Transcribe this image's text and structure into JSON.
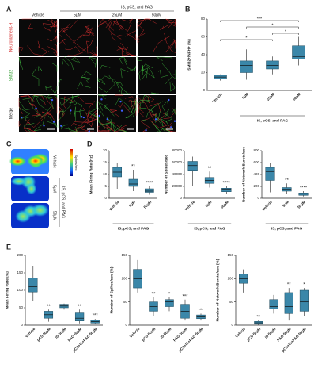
{
  "panel_labels": [
    "A",
    "B",
    "C",
    "D",
    "E"
  ],
  "panel_a": {
    "group_label": "IS, pCS, and PAG",
    "columns": [
      "Vehicle",
      "5μM",
      "25μM",
      "50μM"
    ],
    "rows": [
      "Neurofilament-H",
      "SMI32",
      "Merge"
    ]
  },
  "panel_c": {
    "group_label": "IS, pCS, and PAG",
    "rows": [
      "Vehicle",
      "5μM",
      "50μM"
    ],
    "colorbar_label": "Spikes/sec"
  },
  "chart_data": [
    {
      "type": "box",
      "ylabel": "SMI32+/NFH+ (%)",
      "categories": [
        "Vehicle",
        "5μM",
        "25μM",
        "50μM"
      ],
      "group_label": "IS, pCS, and PAG",
      "group_span": [
        "5μM",
        "50μM"
      ],
      "color": "#3b87a9",
      "ylim": [
        0,
        80
      ],
      "yticks": [
        0,
        20,
        40,
        60,
        80
      ],
      "boxes": [
        {
          "min": 11,
          "q1": 13,
          "median": 15,
          "q3": 17,
          "max": 18
        },
        {
          "min": 12,
          "q1": 20,
          "median": 28,
          "q3": 33,
          "max": 46
        },
        {
          "min": 18,
          "q1": 24,
          "median": 28,
          "q3": 33,
          "max": 38
        },
        {
          "min": 28,
          "q1": 35,
          "median": 38,
          "q3": 50,
          "max": 60
        }
      ],
      "significance": [
        null,
        null,
        null,
        null
      ],
      "comparisons": [
        {
          "from": "Vehicle",
          "to": "50μM",
          "label": "***"
        },
        {
          "from": "5μM",
          "to": "50μM",
          "label": "*"
        },
        {
          "from": "25μM",
          "to": "50μM",
          "label": "*"
        },
        {
          "from": "Vehicle",
          "to": "25μM",
          "label": "*"
        }
      ]
    },
    {
      "type": "box",
      "ylabel": "Mean Firing Rate (Hz)",
      "categories": [
        "Vehicle",
        "5μM",
        "50μM"
      ],
      "group_label": "IS, pCS, and PAG",
      "group_span": [
        "Vehicle",
        "50μM"
      ],
      "color": "#3b87a9",
      "ylim": [
        0,
        20
      ],
      "yticks": [
        0,
        5,
        10,
        15,
        20
      ],
      "boxes": [
        {
          "min": 4,
          "q1": 9,
          "median": 11,
          "q3": 13,
          "max": 15
        },
        {
          "min": 3,
          "q1": 5,
          "median": 6,
          "q3": 8,
          "max": 12
        },
        {
          "min": 1.5,
          "q1": 2.5,
          "median": 3,
          "q3": 4,
          "max": 5
        }
      ],
      "significance": [
        null,
        "**",
        "****"
      ]
    },
    {
      "type": "box",
      "ylabel": "Number of Spikes/sec",
      "categories": [
        "Vehicle",
        "5μM",
        "50μM"
      ],
      "group_label": "IS, pCS, and PAG",
      "group_span": [
        "Vehicle",
        "50μM"
      ],
      "color": "#3b87a9",
      "ylim": [
        0,
        80000
      ],
      "yticks": [
        0,
        20000,
        40000,
        60000,
        80000
      ],
      "boxes": [
        {
          "min": 20000,
          "q1": 47000,
          "median": 55000,
          "q3": 62000,
          "max": 70000
        },
        {
          "min": 18000,
          "q1": 25000,
          "median": 30000,
          "q3": 35000,
          "max": 45000
        },
        {
          "min": 8000,
          "q1": 11000,
          "median": 15000,
          "q3": 17000,
          "max": 20000
        }
      ],
      "significance": [
        null,
        "**",
        "****"
      ]
    },
    {
      "type": "box",
      "ylabel": "Number of Network Bursts/sec",
      "categories": [
        "Vehicle",
        "5μM",
        "50μM"
      ],
      "group_label": "IS, pCS, and PAG",
      "group_span": [
        "Vehicle",
        "50μM"
      ],
      "color": "#3b87a9",
      "ylim": [
        0,
        800
      ],
      "yticks": [
        0,
        200,
        400,
        600,
        800
      ],
      "boxes": [
        {
          "min": 100,
          "q1": 300,
          "median": 450,
          "q3": 520,
          "max": 600
        },
        {
          "min": 80,
          "q1": 120,
          "median": 150,
          "q3": 180,
          "max": 250
        },
        {
          "min": 30,
          "q1": 50,
          "median": 70,
          "q3": 90,
          "max": 120
        }
      ],
      "significance": [
        null,
        "**",
        "****"
      ]
    },
    {
      "type": "box",
      "ylabel": "Mean Firing Rate (%)",
      "categories": [
        "Vehicle",
        "pCS 50μM",
        "IS 50μM",
        "PAG 50μM",
        "pCS+IS+PAG 50μM"
      ],
      "color": "#3b87a9",
      "ylim": [
        0,
        200
      ],
      "yticks": [
        0,
        50,
        100,
        150,
        200
      ],
      "boxes": [
        {
          "min": 70,
          "q1": 95,
          "median": 110,
          "q3": 135,
          "max": 170
        },
        {
          "min": 10,
          "q1": 20,
          "median": 30,
          "q3": 40,
          "max": 45
        },
        {
          "min": 45,
          "q1": 50,
          "median": 55,
          "q3": 60,
          "max": 62
        },
        {
          "min": 5,
          "q1": 12,
          "median": 20,
          "q3": 35,
          "max": 45
        },
        {
          "min": 3,
          "q1": 6,
          "median": 10,
          "q3": 14,
          "max": 18
        }
      ],
      "significance": [
        null,
        "**",
        null,
        "**",
        "***"
      ]
    },
    {
      "type": "box",
      "ylabel": "Number of Spikes/sec (%)",
      "categories": [
        "Vehicle",
        "pCS 50μM",
        "IS 50μM",
        "PAG 50μM",
        "pCS+IS+PAG 50μM"
      ],
      "color": "#3b87a9",
      "ylim": [
        0,
        150
      ],
      "yticks": [
        0,
        50,
        100,
        150
      ],
      "boxes": [
        {
          "min": 70,
          "q1": 80,
          "median": 100,
          "q3": 120,
          "max": 140
        },
        {
          "min": 20,
          "q1": 30,
          "median": 40,
          "q3": 50,
          "max": 60
        },
        {
          "min": 30,
          "q1": 40,
          "median": 50,
          "q3": 55,
          "max": 60
        },
        {
          "min": 10,
          "q1": 15,
          "median": 30,
          "q3": 45,
          "max": 55
        },
        {
          "min": 10,
          "q1": 14,
          "median": 18,
          "q3": 22,
          "max": 25
        }
      ],
      "significance": [
        null,
        "**",
        "*",
        "***",
        "***"
      ]
    },
    {
      "type": "box",
      "ylabel": "Number of Network Bursts/sec (%)",
      "categories": [
        "Vehicle",
        "pCS 50μM",
        "IS 50μM",
        "PAG 50μM",
        "pCS+IS+PAG 50μM"
      ],
      "color": "#3b87a9",
      "ylim": [
        0,
        150
      ],
      "yticks": [
        0,
        50,
        100,
        150
      ],
      "boxes": [
        {
          "min": 70,
          "q1": 90,
          "median": 100,
          "q3": 110,
          "max": 120
        },
        {
          "min": 0,
          "q1": 2,
          "median": 5,
          "q3": 8,
          "max": 10
        },
        {
          "min": 25,
          "q1": 35,
          "median": 40,
          "q3": 55,
          "max": 65
        },
        {
          "min": 10,
          "q1": 25,
          "median": 40,
          "q3": 70,
          "max": 80
        },
        {
          "min": 20,
          "q1": 30,
          "median": 50,
          "q3": 75,
          "max": 80
        }
      ],
      "significance": [
        null,
        "**",
        null,
        "**",
        "*"
      ]
    }
  ]
}
